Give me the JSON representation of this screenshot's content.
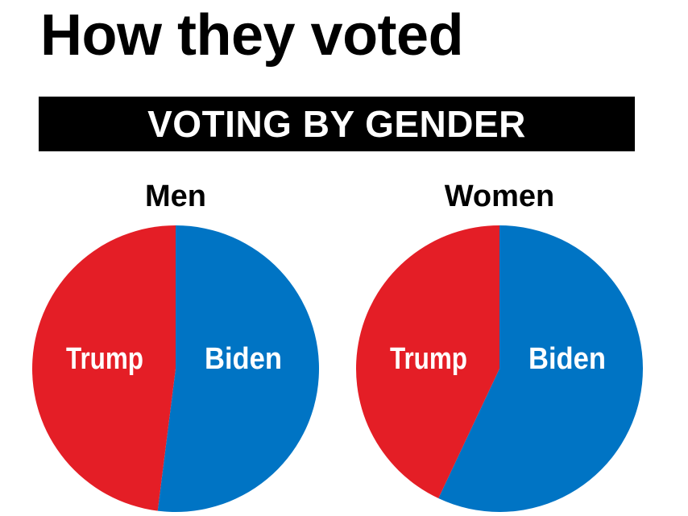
{
  "headline": "How they voted",
  "banner": "VOTING BY GENDER",
  "colors": {
    "trump": "#e41e26",
    "biden": "#0074c4",
    "banner_bg": "#000000",
    "banner_text": "#ffffff"
  },
  "chart_data": [
    {
      "type": "pie",
      "title": "Men",
      "slices": [
        {
          "label": "Trump",
          "value": 48,
          "color": "#e41e26"
        },
        {
          "label": "Biden",
          "value": 52,
          "color": "#0074c4"
        }
      ]
    },
    {
      "type": "pie",
      "title": "Women",
      "slices": [
        {
          "label": "Trump",
          "value": 43,
          "color": "#e41e26"
        },
        {
          "label": "Biden",
          "value": 57,
          "color": "#0074c4"
        }
      ]
    }
  ]
}
